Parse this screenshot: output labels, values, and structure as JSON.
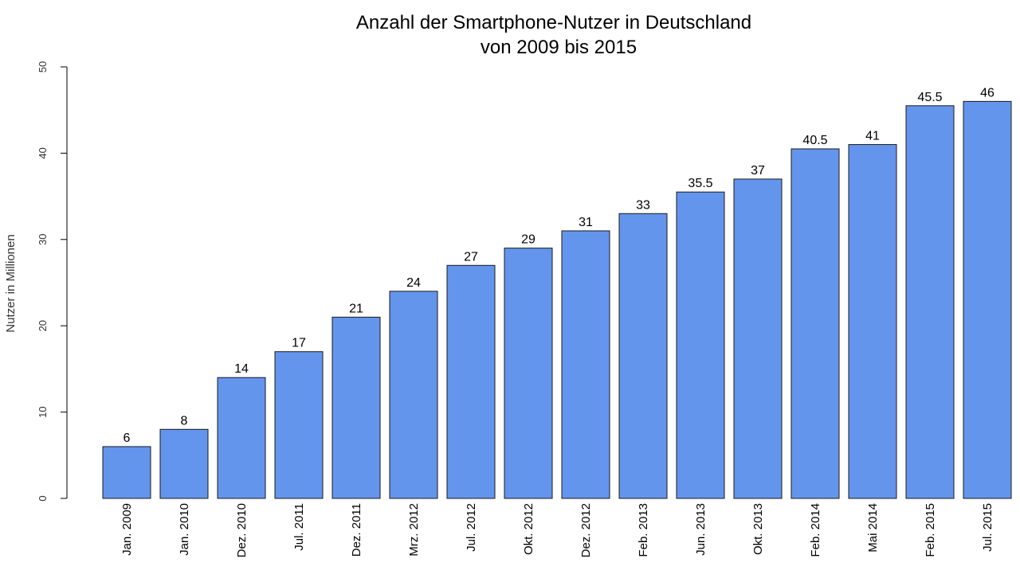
{
  "chart_data": {
    "type": "bar",
    "title": [
      "Anzahl der Smartphone-Nutzer in Deutschland",
      "von 2009 bis 2015"
    ],
    "xlabel": "",
    "ylabel": "Nutzer in Millionen",
    "ylim": [
      0,
      50
    ],
    "yticks": [
      0,
      10,
      20,
      30,
      40,
      50
    ],
    "categories": [
      "Jan. 2009",
      "Jan. 2010",
      "Dez. 2010",
      "Jul. 2011",
      "Dez. 2011",
      "Mrz. 2012",
      "Jul. 2012",
      "Okt. 2012",
      "Dez. 2012",
      "Feb. 2013",
      "Jun. 2013",
      "Okt. 2013",
      "Feb. 2014",
      "Mai 2014",
      "Feb. 2015",
      "Jul. 2015"
    ],
    "values": [
      6,
      8,
      14,
      17,
      21,
      24,
      27,
      29,
      31,
      33,
      35.5,
      37,
      40.5,
      41,
      45.5,
      46
    ],
    "value_labels": [
      "6",
      "8",
      "14",
      "17",
      "21",
      "24",
      "27",
      "29",
      "31",
      "33",
      "35.5",
      "37",
      "40.5",
      "41",
      "45.5",
      "46"
    ],
    "bar_color": "#6495ed",
    "grid": false,
    "legend": "none"
  }
}
